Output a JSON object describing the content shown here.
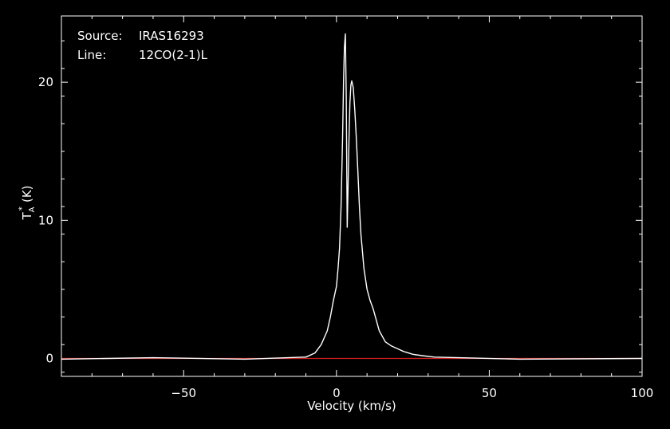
{
  "chart_data": {
    "type": "line",
    "background": "#000000",
    "foreground": "#ffffff",
    "baseline_color": "#d22020",
    "xlabel": "Velocity (km/s)",
    "ylabel": "T",
    "ylabel_sub": "A",
    "ylabel_sup": "*",
    "ylabel_unit": "(K)",
    "xlim": [
      -90,
      100
    ],
    "ylim": [
      -1.3,
      24.8
    ],
    "xticks": [
      -50,
      0,
      50,
      100
    ],
    "xtick_labels": [
      "−50",
      "0",
      "50",
      "100"
    ],
    "yticks": [
      0,
      10,
      20
    ],
    "ytick_labels": [
      "0",
      "10",
      "20"
    ],
    "annotations": {
      "source_label": "Source:",
      "source_value": "IRAS16293",
      "line_label": "Line:",
      "line_value": "12CO(2-1)L"
    },
    "baseline_y": 0,
    "series": [
      {
        "color": "#ffffff",
        "x": [
          -90,
          -60,
          -30,
          -10,
          -7,
          -5,
          -3,
          -2,
          -1,
          0,
          0.5,
          1,
          1.5,
          2,
          2.3,
          2.6,
          2.9,
          3.2,
          3.5,
          3.8,
          4.1,
          4.4,
          4.7,
          5.0,
          5.5,
          6.0,
          6.5,
          7.0,
          7.5,
          8,
          9,
          10,
          11,
          12,
          14,
          16,
          18,
          20,
          22,
          25,
          28,
          32,
          40,
          60,
          100
        ],
        "y": [
          -0.05,
          0.05,
          -0.05,
          0.1,
          0.4,
          1.0,
          2.0,
          3.0,
          4.2,
          5.2,
          6.5,
          8.0,
          11.0,
          16.0,
          20.0,
          22.5,
          23.5,
          19.0,
          9.5,
          12.5,
          16.0,
          18.5,
          19.8,
          20.1,
          19.6,
          18.0,
          16.0,
          13.5,
          11.0,
          9.0,
          6.5,
          5.0,
          4.2,
          3.6,
          2.0,
          1.2,
          0.9,
          0.7,
          0.5,
          0.3,
          0.2,
          0.1,
          0.05,
          -0.05,
          0.0
        ]
      }
    ]
  }
}
